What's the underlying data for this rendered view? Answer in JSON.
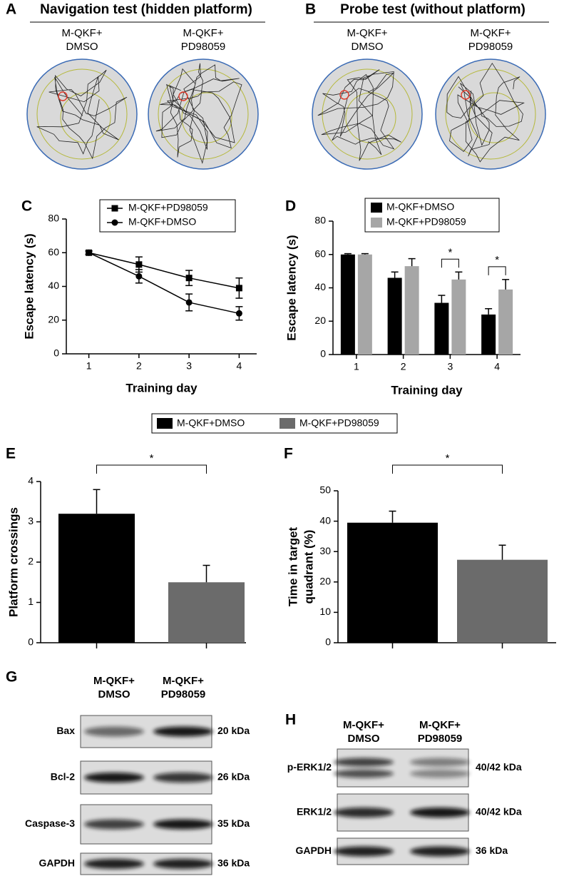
{
  "panels": {
    "A": {
      "label": "A",
      "title": "Navigation test (hidden platform)",
      "groups": [
        [
          "M-QKF+",
          "DMSO"
        ],
        [
          "M-QKF+",
          "PD98059"
        ]
      ]
    },
    "B": {
      "label": "B",
      "title": "Probe test (without platform)",
      "groups": [
        [
          "M-QKF+",
          "DMSO"
        ],
        [
          "M-QKF+",
          "PD98059"
        ]
      ]
    },
    "G": {
      "label": "G",
      "columns": [
        [
          "M-QKF+",
          "DMSO"
        ],
        [
          "M-QKF+",
          "PD98059"
        ]
      ],
      "rows": [
        {
          "name": "Bax",
          "size": "20 kDa"
        },
        {
          "name": "Bcl-2",
          "size": "26 kDa"
        },
        {
          "name": "Caspase-3",
          "size": "35 kDa"
        },
        {
          "name": "GAPDH",
          "size": "36 kDa"
        }
      ]
    },
    "H": {
      "label": "H",
      "columns": [
        [
          "M-QKF+",
          "DMSO"
        ],
        [
          "M-QKF+",
          "PD98059"
        ]
      ],
      "rows": [
        {
          "name": "p-ERK1/2",
          "size": "40/42 kDa"
        },
        {
          "name": "ERK1/2",
          "size": "40/42 kDa"
        },
        {
          "name": "GAPDH",
          "size": "36 kDa"
        }
      ]
    }
  },
  "chart_data": [
    {
      "label": "C",
      "type": "line",
      "x": [
        1,
        2,
        3,
        4
      ],
      "xlim": [
        0.55,
        4.35
      ],
      "xticks": [
        1,
        2,
        3,
        4
      ],
      "ylim": [
        0,
        80
      ],
      "yticks": [
        0,
        20,
        40,
        60,
        80
      ],
      "xlabel": "Training day",
      "ylabel": "Escape latency (s)",
      "series": [
        {
          "name": "M-QKF+PD98059",
          "color": "#000000",
          "marker": "square",
          "values": [
            60,
            53,
            45,
            39
          ],
          "errors": [
            1,
            4.5,
            4.5,
            6
          ]
        },
        {
          "name": "M-QKF+DMSO",
          "color": "#000000",
          "marker": "circle",
          "values": [
            60,
            46,
            30.5,
            24
          ],
          "errors": [
            1,
            4,
            5,
            4
          ]
        }
      ]
    },
    {
      "label": "D",
      "type": "bar",
      "categories": [
        "1",
        "2",
        "3",
        "4"
      ],
      "ylim": [
        0,
        80
      ],
      "yticks": [
        0,
        20,
        40,
        60,
        80
      ],
      "xlabel": "Training day",
      "ylabel": "Escape latency (s)",
      "significance": [
        null,
        null,
        "*",
        "*"
      ],
      "series": [
        {
          "name": "M-QKF+DMSO",
          "color": "#000000",
          "values": [
            60,
            46,
            31,
            24
          ],
          "errors": [
            0.5,
            3.5,
            4.5,
            3.5
          ]
        },
        {
          "name": "M-QKF+PD98059",
          "color": "#a6a6a6",
          "values": [
            60,
            53,
            45,
            39
          ],
          "errors": [
            0.5,
            4.5,
            4.5,
            6
          ]
        }
      ]
    },
    {
      "label": "E",
      "type": "bar",
      "ylim": [
        0,
        4
      ],
      "yticks": [
        0,
        1,
        2,
        3,
        4
      ],
      "ylabel": "Platform crossings",
      "significance": "*",
      "series": [
        {
          "name": "M-QKF+DMSO",
          "color": "#000000",
          "values": [
            3.2
          ],
          "errors": [
            0.6
          ]
        },
        {
          "name": "M-QKF+PD98059",
          "color": "#6b6b6b",
          "values": [
            1.5
          ],
          "errors": [
            0.42
          ]
        }
      ]
    },
    {
      "label": "F",
      "type": "bar",
      "ylim": [
        0,
        50
      ],
      "yticks": [
        0,
        10,
        20,
        30,
        40,
        50
      ],
      "ylabel": [
        "Time in target",
        "quadrant (%)"
      ],
      "significance": "*",
      "series": [
        {
          "color": "#000000",
          "values": [
            39.5
          ],
          "errors": [
            3.8
          ]
        },
        {
          "color": "#6b6b6b",
          "values": [
            27.3
          ],
          "errors": [
            4.8
          ]
        }
      ]
    }
  ]
}
